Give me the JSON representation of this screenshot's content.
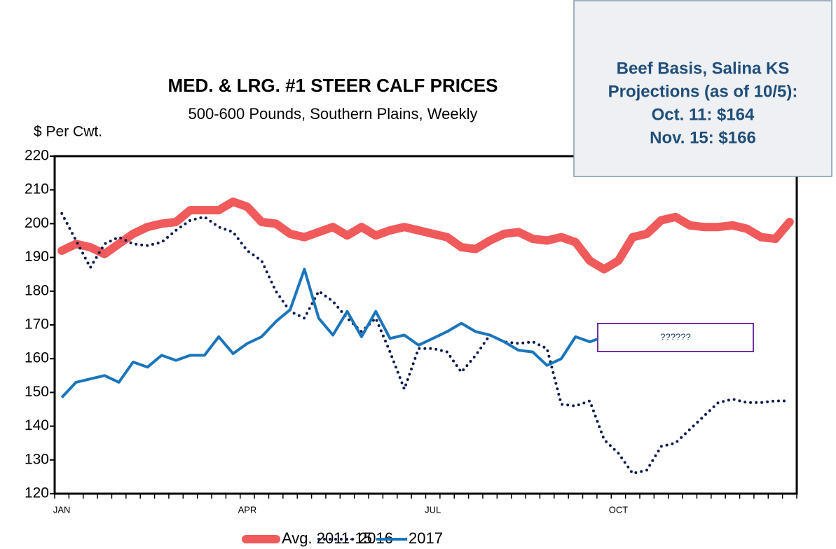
{
  "chart_data": {
    "type": "line",
    "title": "MED. & LRG. #1 STEER CALF PRICES",
    "subtitle": "500-600 Pounds, Southern Plains, Weekly",
    "y_label": "$ Per Cwt.",
    "categories": [
      "JAN",
      null,
      null,
      null,
      null,
      null,
      null,
      null,
      null,
      null,
      null,
      null,
      null,
      "APR",
      null,
      null,
      null,
      null,
      null,
      null,
      null,
      null,
      null,
      null,
      null,
      null,
      "JUL",
      null,
      null,
      null,
      null,
      null,
      null,
      null,
      null,
      null,
      null,
      null,
      null,
      "OCT",
      null,
      null,
      null,
      null,
      null,
      null,
      null,
      null,
      null,
      null,
      null,
      null
    ],
    "series": [
      {
        "name": "Avg. 2011-15",
        "color": "#f05a5b",
        "style": "thick",
        "values": [
          192,
          194,
          193,
          191,
          194,
          197,
          199,
          200,
          200.5,
          204,
          204,
          204,
          206.5,
          205,
          200.5,
          200,
          197,
          196,
          197.5,
          199,
          196.5,
          199,
          196.5,
          198,
          199,
          198,
          197,
          196,
          193,
          192.5,
          195,
          197,
          197.5,
          195.5,
          195,
          196,
          194.5,
          189,
          186.5,
          189,
          196,
          197,
          201,
          202,
          199.5,
          199,
          199,
          199.5,
          198.5,
          196,
          195.5,
          200.5
        ]
      },
      {
        "name": "2016",
        "color": "#0d1b4f",
        "style": "dotted",
        "values": [
          203,
          195,
          187,
          194,
          196,
          194,
          193.5,
          194.5,
          198,
          201,
          202,
          199,
          197.5,
          192,
          189,
          180,
          174,
          172,
          180,
          177,
          172,
          168,
          172,
          162,
          151,
          163,
          163,
          162,
          156,
          161,
          167,
          165,
          164.5,
          165,
          163,
          146.5,
          146,
          147.5,
          136,
          132,
          126,
          127,
          134,
          135,
          139,
          143,
          147,
          148,
          147,
          147,
          147.5,
          147.5
        ]
      },
      {
        "name": "2017",
        "color": "#1a75bc",
        "style": "solid",
        "values": [
          148.5,
          153,
          154,
          155,
          153,
          159,
          157.5,
          161,
          159.5,
          161,
          161,
          166.5,
          161.5,
          164.5,
          166.5,
          171,
          174.5,
          186.5,
          172,
          167,
          174,
          166.5,
          174,
          166,
          167,
          164,
          166,
          168,
          170.5,
          168,
          167,
          165,
          162.5,
          162,
          158,
          160,
          166.5,
          165,
          166.5,
          null,
          null,
          null,
          null,
          null,
          null,
          null,
          null,
          null,
          null,
          null,
          null,
          null
        ]
      }
    ],
    "ylim": [
      120,
      220
    ],
    "yticks": [
      120,
      130,
      140,
      150,
      160,
      170,
      180,
      190,
      200,
      210,
      220
    ],
    "annotation": "??????",
    "callout": [
      "Beef Basis, Salina KS",
      "Projections (as of 10/5):",
      "Oct. 11: $164",
      "Nov. 15: $166"
    ],
    "legend": "bottom"
  }
}
